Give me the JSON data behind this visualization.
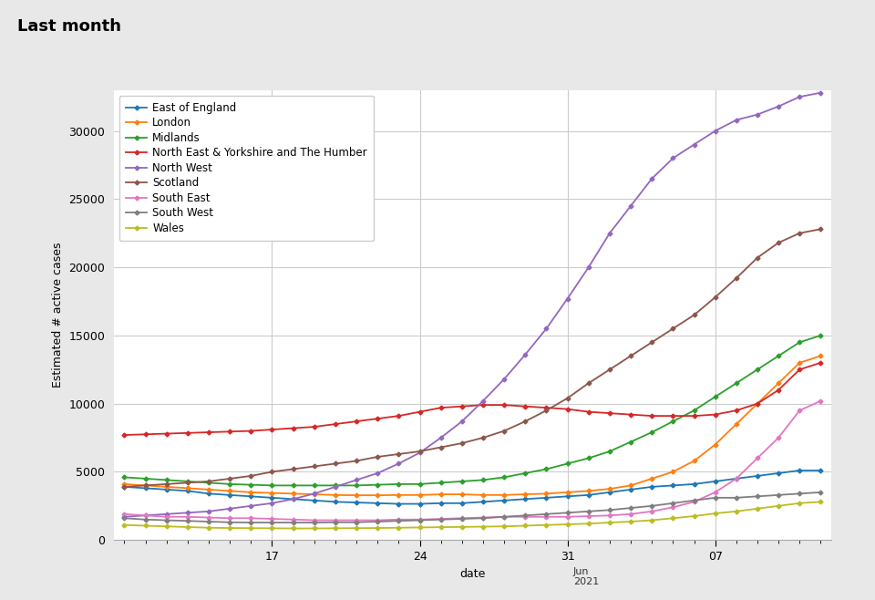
{
  "title": "Last month",
  "xlabel": "date",
  "ylabel": "Estimated # active cases",
  "ylim": [
    0,
    33000
  ],
  "yticks": [
    0,
    5000,
    10000,
    15000,
    20000,
    25000,
    30000
  ],
  "background_color": "#e8e8e8",
  "plot_bg_color": "#ffffff",
  "grid_color": "#cccccc",
  "series": [
    {
      "label": "East of England",
      "color": "#1f77b4",
      "data": [
        3900,
        3800,
        3700,
        3600,
        3400,
        3300,
        3200,
        3100,
        3000,
        2900,
        2800,
        2750,
        2700,
        2650,
        2650,
        2700,
        2700,
        2800,
        2900,
        3000,
        3100,
        3200,
        3300,
        3500,
        3700,
        3900,
        4000,
        4100,
        4300,
        4500,
        4700,
        4900,
        5100,
        5100
      ]
    },
    {
      "label": "London",
      "color": "#ff7f0e",
      "data": [
        4100,
        4000,
        3900,
        3800,
        3700,
        3600,
        3500,
        3450,
        3400,
        3350,
        3300,
        3280,
        3280,
        3300,
        3300,
        3350,
        3350,
        3300,
        3300,
        3350,
        3400,
        3500,
        3600,
        3750,
        4000,
        4500,
        5000,
        5800,
        7000,
        8500,
        10000,
        11500,
        13000,
        13500
      ]
    },
    {
      "label": "Midlands",
      "color": "#2ca02c",
      "data": [
        4600,
        4500,
        4400,
        4300,
        4200,
        4100,
        4050,
        4000,
        4000,
        4000,
        4000,
        4000,
        4050,
        4100,
        4100,
        4200,
        4300,
        4400,
        4600,
        4900,
        5200,
        5600,
        6000,
        6500,
        7200,
        7900,
        8700,
        9500,
        10500,
        11500,
        12500,
        13500,
        14500,
        15000
      ]
    },
    {
      "label": "North East & Yorkshire and The Humber",
      "color": "#d62728",
      "data": [
        7700,
        7750,
        7800,
        7850,
        7900,
        7950,
        8000,
        8100,
        8200,
        8300,
        8500,
        8700,
        8900,
        9100,
        9400,
        9700,
        9800,
        9900,
        9900,
        9800,
        9700,
        9600,
        9400,
        9300,
        9200,
        9100,
        9100,
        9100,
        9200,
        9500,
        10000,
        11000,
        12500,
        13000
      ]
    },
    {
      "label": "North West",
      "color": "#9467bd",
      "data": [
        1700,
        1800,
        1900,
        2000,
        2100,
        2300,
        2500,
        2700,
        3000,
        3400,
        3900,
        4400,
        4900,
        5600,
        6400,
        7500,
        8700,
        10200,
        11800,
        13600,
        15500,
        17700,
        20000,
        22500,
        24500,
        26500,
        28000,
        29000,
        30000,
        30800,
        31200,
        31800,
        32500,
        32800
      ]
    },
    {
      "label": "Scotland",
      "color": "#8c564b",
      "data": [
        3900,
        4000,
        4100,
        4200,
        4300,
        4500,
        4700,
        5000,
        5200,
        5400,
        5600,
        5800,
        6100,
        6300,
        6500,
        6800,
        7100,
        7500,
        8000,
        8700,
        9500,
        10400,
        11500,
        12500,
        13500,
        14500,
        15500,
        16500,
        17800,
        19200,
        20700,
        21800,
        22500,
        22800
      ]
    },
    {
      "label": "South East",
      "color": "#e377c2",
      "data": [
        1900,
        1800,
        1700,
        1700,
        1650,
        1600,
        1600,
        1550,
        1500,
        1450,
        1450,
        1450,
        1450,
        1500,
        1500,
        1550,
        1600,
        1650,
        1700,
        1700,
        1700,
        1700,
        1750,
        1800,
        1900,
        2100,
        2400,
        2800,
        3500,
        4500,
        6000,
        7500,
        9500,
        10200
      ]
    },
    {
      "label": "South West",
      "color": "#7f7f7f",
      "data": [
        1600,
        1500,
        1450,
        1400,
        1350,
        1300,
        1280,
        1280,
        1280,
        1280,
        1300,
        1300,
        1350,
        1400,
        1450,
        1500,
        1550,
        1600,
        1700,
        1800,
        1900,
        2000,
        2100,
        2200,
        2350,
        2500,
        2700,
        2900,
        3100,
        3100,
        3200,
        3300,
        3400,
        3500
      ]
    },
    {
      "label": "Wales",
      "color": "#bcbd22",
      "data": [
        1100,
        1050,
        1000,
        950,
        900,
        880,
        870,
        860,
        850,
        850,
        860,
        870,
        880,
        900,
        920,
        940,
        960,
        980,
        1000,
        1050,
        1100,
        1150,
        1200,
        1280,
        1350,
        1450,
        1600,
        1750,
        1950,
        2100,
        2300,
        2500,
        2700,
        2800
      ]
    }
  ],
  "n_points": 34,
  "xtick_labels": [
    "17",
    "24",
    "31",
    "07"
  ],
  "xtick_positions": [
    7,
    14,
    21,
    28
  ],
  "title_fontsize": 13,
  "axis_label_fontsize": 9,
  "tick_fontsize": 9,
  "legend_fontsize": 8.5
}
